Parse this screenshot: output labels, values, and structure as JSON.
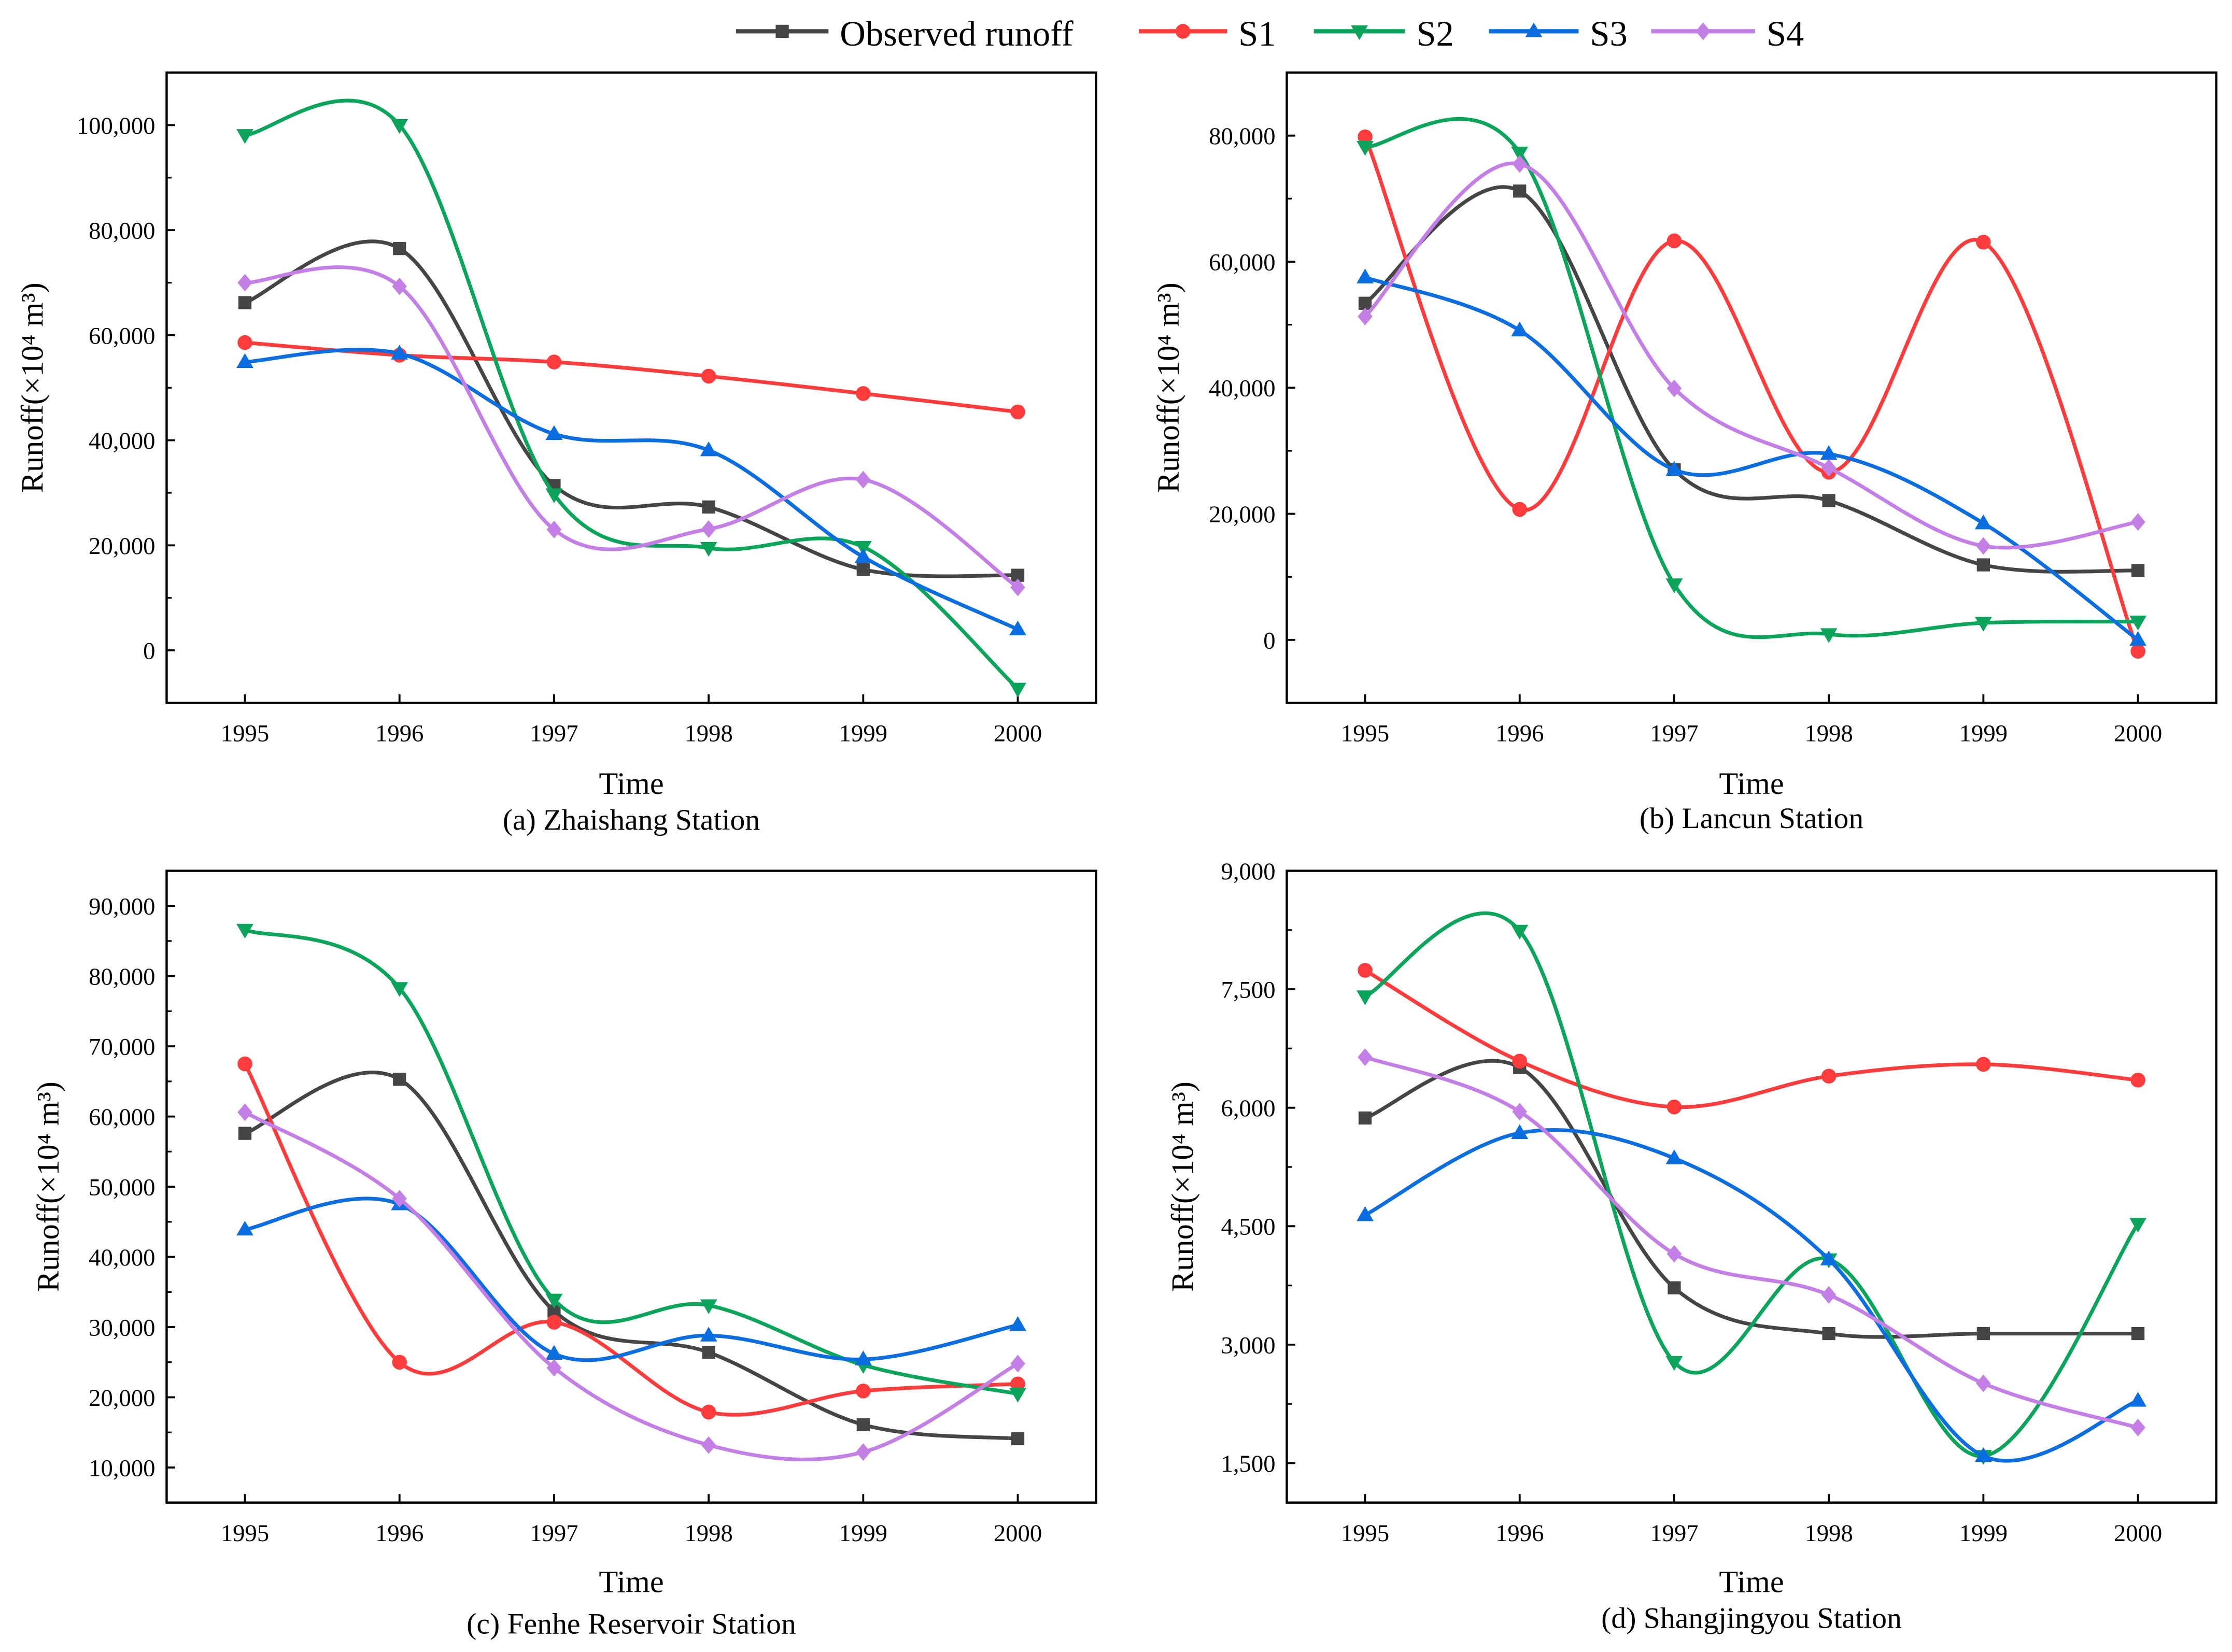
{
  "legend": [
    {
      "name": "Observed runoff",
      "color": "#454545",
      "marker": "square"
    },
    {
      "name": "S1",
      "color": "#ff3b3b",
      "marker": "circle"
    },
    {
      "name": "S2",
      "color": "#0aa55a",
      "marker": "triangle-down"
    },
    {
      "name": "S3",
      "color": "#0a6ee0",
      "marker": "triangle-up"
    },
    {
      "name": "S4",
      "color": "#c47fe6",
      "marker": "diamond"
    }
  ],
  "chart_data": [
    {
      "type": "line",
      "caption": "(a) Zhaishang Station",
      "xlabel": "Time",
      "ylabel": "Runoff(×10⁴ m³)",
      "categories": [
        "1995",
        "1996",
        "1997",
        "1998",
        "1999",
        "2000"
      ],
      "ylim": [
        -10000,
        110000
      ],
      "yticks": [
        0,
        20000,
        40000,
        60000,
        80000,
        100000
      ],
      "ytick_labels": [
        "0",
        "20,000",
        "40,000",
        "60,000",
        "80,000",
        "100,000"
      ],
      "grid": false,
      "series": [
        {
          "name": "Observed runoff",
          "values": [
            66200,
            76500,
            31400,
            27300,
            15400,
            14300
          ]
        },
        {
          "name": "S1",
          "values": [
            58600,
            56200,
            54900,
            52200,
            48900,
            45400
          ]
        },
        {
          "name": "S2",
          "values": [
            98100,
            100000,
            29700,
            19500,
            19700,
            -7300
          ]
        },
        {
          "name": "S3",
          "values": [
            54900,
            56500,
            41200,
            38100,
            17800,
            4000
          ]
        },
        {
          "name": "S4",
          "values": [
            70000,
            69300,
            23000,
            23100,
            32500,
            12000
          ]
        }
      ]
    },
    {
      "type": "line",
      "caption": "(b) Lancun Station",
      "xlabel": "Time",
      "ylabel": "Runoff(×10⁴ m³)",
      "categories": [
        "1995",
        "1996",
        "1997",
        "1998",
        "1999",
        "2000"
      ],
      "ylim": [
        -10000,
        90000
      ],
      "yticks": [
        0,
        20000,
        40000,
        60000,
        80000
      ],
      "ytick_labels": [
        "0",
        "20,000",
        "40,000",
        "60,000",
        "80,000"
      ],
      "grid": false,
      "series": [
        {
          "name": "Observed runoff",
          "values": [
            53400,
            71200,
            27000,
            22100,
            11900,
            11000
          ]
        },
        {
          "name": "S1",
          "values": [
            79800,
            20700,
            63300,
            26600,
            63100,
            -1800
          ]
        },
        {
          "name": "S2",
          "values": [
            78200,
            77300,
            8800,
            900,
            2700,
            2900
          ]
        },
        {
          "name": "S3",
          "values": [
            57500,
            49100,
            27000,
            29500,
            18500,
            0
          ]
        },
        {
          "name": "S4",
          "values": [
            51300,
            75500,
            39900,
            27300,
            14900,
            18700
          ]
        }
      ]
    },
    {
      "type": "line",
      "caption": "(c) Fenhe Reservoir Station",
      "xlabel": "Time",
      "ylabel": "Runoff(×10⁴ m³)",
      "categories": [
        "1995",
        "1996",
        "1997",
        "1998",
        "1999",
        "2000"
      ],
      "ylim": [
        5000,
        95000
      ],
      "yticks": [
        10000,
        20000,
        30000,
        40000,
        50000,
        60000,
        70000,
        80000,
        90000
      ],
      "ytick_labels": [
        "10,000",
        "20,000",
        "30,000",
        "40,000",
        "50,000",
        "60,000",
        "70,000",
        "80,000",
        "90,000"
      ],
      "grid": false,
      "series": [
        {
          "name": "Observed runoff",
          "values": [
            57600,
            65300,
            32300,
            26400,
            16100,
            14100
          ]
        },
        {
          "name": "S1",
          "values": [
            67500,
            25000,
            30700,
            17900,
            20900,
            21900
          ]
        },
        {
          "name": "S2",
          "values": [
            86600,
            78300,
            33900,
            33100,
            24600,
            20500
          ]
        },
        {
          "name": "S3",
          "values": [
            43900,
            47500,
            26200,
            28800,
            25400,
            30300
          ]
        },
        {
          "name": "S4",
          "values": [
            60600,
            48300,
            24200,
            13200,
            12200,
            24800
          ]
        }
      ]
    },
    {
      "type": "line",
      "caption": "(d) Shangjingyou Station",
      "xlabel": "Time",
      "ylabel": "Runoff(×10⁴ m³)",
      "categories": [
        "1995",
        "1996",
        "1997",
        "1998",
        "1999",
        "2000"
      ],
      "ylim": [
        1000,
        9000
      ],
      "yticks": [
        1500,
        3000,
        4500,
        6000,
        7500,
        9000
      ],
      "ytick_labels": [
        "1,500",
        "3,000",
        "4,500",
        "6,000",
        "7,500",
        "9,000"
      ],
      "grid": false,
      "series": [
        {
          "name": "Observed runoff",
          "values": [
            5870,
            6510,
            3720,
            3140,
            3140,
            3140
          ]
        },
        {
          "name": "S1",
          "values": [
            7740,
            6590,
            6010,
            6400,
            6550,
            6350
          ]
        },
        {
          "name": "S2",
          "values": [
            7410,
            8240,
            2780,
            4080,
            1590,
            4530
          ]
        },
        {
          "name": "S3",
          "values": [
            4640,
            5680,
            5360,
            4080,
            1590,
            2290
          ]
        },
        {
          "name": "S4",
          "values": [
            6640,
            5950,
            4150,
            3630,
            2510,
            1950
          ]
        }
      ]
    }
  ]
}
